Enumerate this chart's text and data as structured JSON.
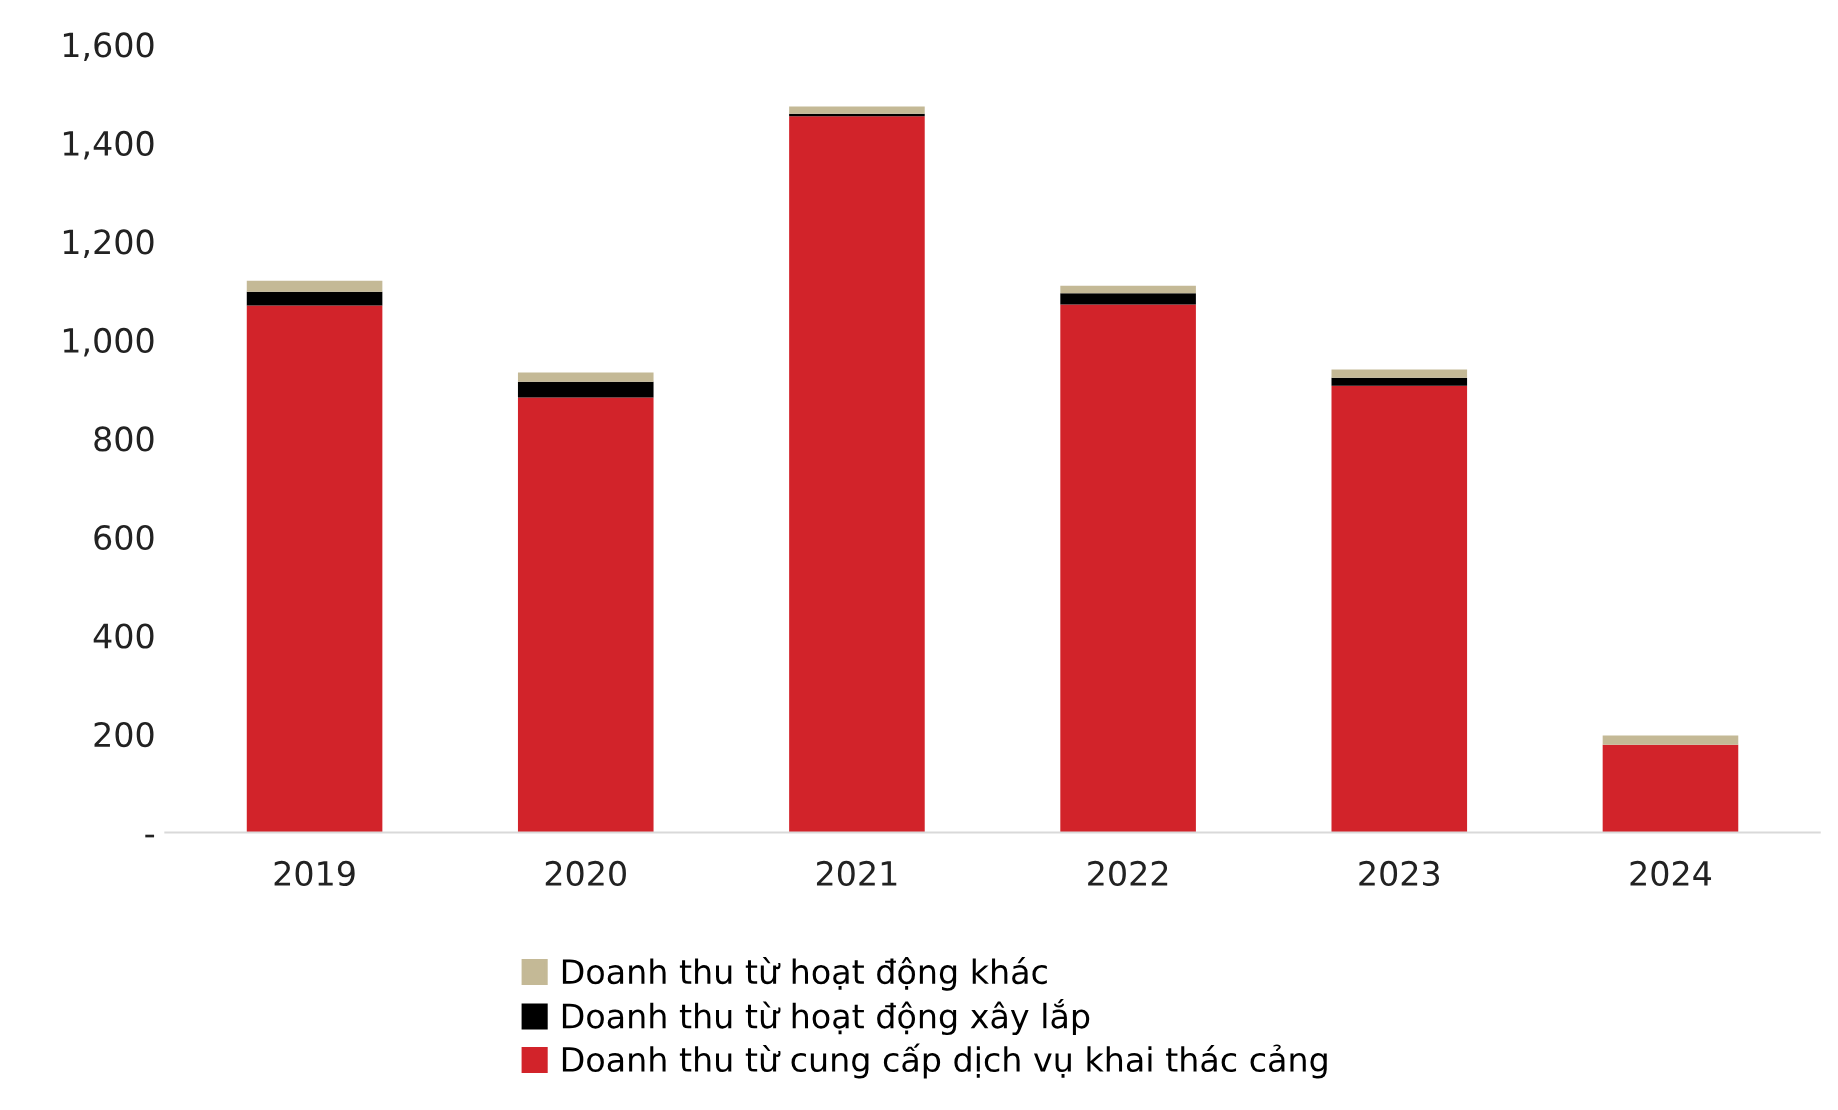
{
  "chart_data": {
    "type": "bar",
    "stacked": true,
    "categories": [
      "2019",
      "2020",
      "2021",
      "2022",
      "2023",
      "2024"
    ],
    "series": [
      {
        "name": "Doanh thu từ cung cấp dịch vụ khai thác cảng",
        "color": "#d2232a",
        "values": [
          1070,
          883,
          1454,
          1072,
          907,
          178
        ]
      },
      {
        "name": "Doanh thu từ hoạt động xây lắp",
        "color": "#000000",
        "values": [
          28,
          32,
          5,
          23,
          16,
          0
        ]
      },
      {
        "name": "Doanh thu từ hoạt động khác",
        "color": "#c4b996",
        "values": [
          22,
          19,
          15,
          15,
          17,
          19
        ]
      }
    ],
    "ylim": [
      0,
      1600
    ],
    "yticks": [
      {
        "value": 0,
        "label": "-"
      },
      {
        "value": 200,
        "label": "200"
      },
      {
        "value": 400,
        "label": "400"
      },
      {
        "value": 600,
        "label": "600"
      },
      {
        "value": 800,
        "label": "800"
      },
      {
        "value": 1000,
        "label": "1,000"
      },
      {
        "value": 1200,
        "label": "1,200"
      },
      {
        "value": 1400,
        "label": "1,400"
      },
      {
        "value": 1600,
        "label": "1,600"
      }
    ],
    "grid": false,
    "legend": "bottom"
  }
}
